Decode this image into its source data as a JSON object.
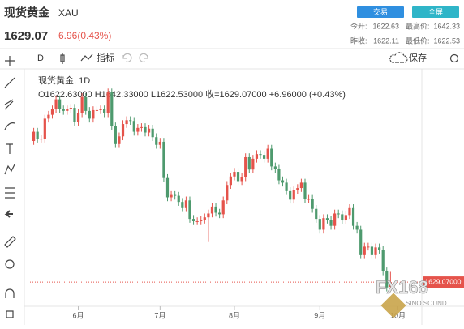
{
  "header": {
    "title": "现货黄金",
    "symbol": "XAU",
    "price": "1629.07",
    "change": "6.96(0.43%)",
    "buttons": [
      "交易",
      "全屏"
    ],
    "stats": [
      {
        "label": "今开:",
        "value": "1622.63"
      },
      {
        "label": "最高价:",
        "value": "1642.33"
      },
      {
        "label": "昨收:",
        "value": "1622.11"
      },
      {
        "label": "最低价:",
        "value": "1622.53"
      }
    ]
  },
  "toolbar": {
    "interval": "D",
    "indicators": "指标",
    "save": "保存"
  },
  "watermark": {
    "brand": "FX168",
    "tagline": "SINO SOUND"
  },
  "chart_data": {
    "type": "candlestick",
    "legend_title": "现货黄金, 1D",
    "ohlc_label": "O1622.63000 H1642.33000 L1622.53000 收=1629.07000 +6.96000 (+0.43%)",
    "last_price_label": "1629.07000",
    "up_color": "#e5534b",
    "down_color": "#4e9a6e",
    "xlim": [
      -1,
      104
    ],
    "xticks": [
      {
        "value": 12,
        "label": "6月"
      },
      {
        "value": 34,
        "label": "7月"
      },
      {
        "value": 54,
        "label": "8月"
      },
      {
        "value": 77,
        "label": "9月"
      },
      {
        "value": 98,
        "label": "10月"
      }
    ],
    "ylim": [
      1605,
      1895
    ],
    "open": [
      1812,
      1824,
      1815,
      1815,
      1841,
      1846,
      1853,
      1866,
      1853,
      1851,
      1853,
      1855,
      1837,
      1848,
      1869,
      1851,
      1841,
      1852,
      1852,
      1853,
      1848,
      1875,
      1831,
      1808,
      1818,
      1834,
      1839,
      1838,
      1824,
      1829,
      1830,
      1823,
      1828,
      1817,
      1807,
      1811,
      1764,
      1739,
      1742,
      1741,
      1733,
      1725,
      1735,
      1711,
      1708,
      1708,
      1710,
      1713,
      1718,
      1727,
      1719,
      1717,
      1735,
      1755,
      1766,
      1772,
      1760,
      1765,
      1791,
      1775,
      1789,
      1795,
      1794,
      1789,
      1802,
      1779,
      1776,
      1761,
      1758,
      1747,
      1736,
      1748,
      1751,
      1758,
      1737,
      1737,
      1724,
      1711,
      1697,
      1712,
      1710,
      1702,
      1718,
      1717,
      1709,
      1716,
      1725,
      1702,
      1697,
      1664,
      1675,
      1675,
      1664,
      1674,
      1671,
      1643,
      1622.63
    ],
    "high": [
      1829,
      1829,
      1820,
      1846,
      1851,
      1858,
      1871,
      1871,
      1858,
      1858,
      1860,
      1860,
      1853,
      1874,
      1874,
      1856,
      1857,
      1857,
      1858,
      1858,
      1880,
      1880,
      1836,
      1823,
      1839,
      1844,
      1844,
      1843,
      1834,
      1835,
      1835,
      1833,
      1833,
      1822,
      1816,
      1816,
      1769,
      1747,
      1747,
      1746,
      1738,
      1740,
      1740,
      1716,
      1713,
      1715,
      1718,
      1723,
      1732,
      1732,
      1724,
      1740,
      1760,
      1771,
      1777,
      1777,
      1770,
      1796,
      1796,
      1794,
      1800,
      1800,
      1799,
      1807,
      1807,
      1784,
      1781,
      1766,
      1763,
      1752,
      1753,
      1756,
      1763,
      1763,
      1742,
      1742,
      1729,
      1716,
      1717,
      1717,
      1715,
      1723,
      1723,
      1722,
      1721,
      1730,
      1730,
      1707,
      1702,
      1680,
      1680,
      1680,
      1679,
      1679,
      1676,
      1648,
      1642.33
    ],
    "low": [
      1807,
      1810,
      1810,
      1810,
      1836,
      1841,
      1848,
      1848,
      1846,
      1846,
      1848,
      1832,
      1832,
      1843,
      1846,
      1836,
      1836,
      1847,
      1847,
      1843,
      1843,
      1826,
      1803,
      1803,
      1813,
      1829,
      1833,
      1819,
      1819,
      1824,
      1818,
      1818,
      1812,
      1802,
      1802,
      1759,
      1734,
      1734,
      1736,
      1728,
      1720,
      1720,
      1706,
      1703,
      1703,
      1703,
      1705,
      1681,
      1713,
      1714,
      1712,
      1712,
      1730,
      1750,
      1761,
      1755,
      1755,
      1760,
      1770,
      1770,
      1784,
      1789,
      1784,
      1784,
      1774,
      1771,
      1756,
      1753,
      1742,
      1731,
      1731,
      1743,
      1746,
      1732,
      1732,
      1719,
      1706,
      1692,
      1692,
      1705,
      1697,
      1697,
      1712,
      1704,
      1704,
      1711,
      1697,
      1692,
      1659,
      1659,
      1670,
      1659,
      1659,
      1666,
      1638,
      1617,
      1622.53
    ],
    "close": [
      1824,
      1815,
      1815,
      1841,
      1846,
      1853,
      1866,
      1853,
      1851,
      1853,
      1855,
      1837,
      1848,
      1869,
      1851,
      1841,
      1852,
      1852,
      1853,
      1848,
      1875,
      1831,
      1808,
      1818,
      1834,
      1839,
      1838,
      1824,
      1829,
      1830,
      1823,
      1828,
      1817,
      1807,
      1811,
      1764,
      1739,
      1742,
      1741,
      1733,
      1725,
      1735,
      1711,
      1708,
      1708,
      1710,
      1713,
      1718,
      1727,
      1719,
      1717,
      1735,
      1755,
      1766,
      1772,
      1760,
      1765,
      1791,
      1775,
      1789,
      1795,
      1794,
      1789,
      1802,
      1779,
      1776,
      1761,
      1758,
      1747,
      1736,
      1748,
      1751,
      1758,
      1737,
      1737,
      1724,
      1711,
      1697,
      1712,
      1710,
      1702,
      1718,
      1717,
      1709,
      1716,
      1725,
      1702,
      1697,
      1664,
      1675,
      1675,
      1664,
      1674,
      1671,
      1643,
      1622.11,
      1629.07
    ]
  }
}
